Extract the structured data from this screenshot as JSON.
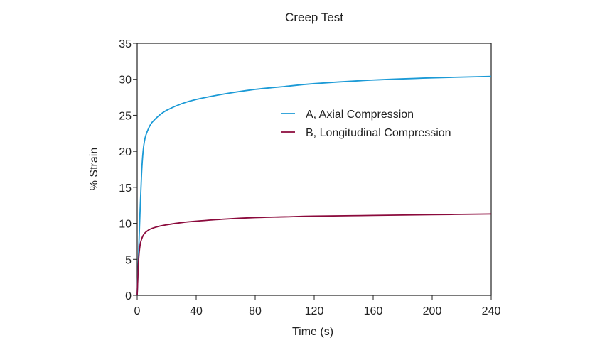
{
  "chart_data": {
    "type": "line",
    "title": "Creep Test",
    "xlabel": "Time (s)",
    "ylabel": "% Strain",
    "xlim": [
      0,
      240
    ],
    "ylim": [
      0,
      35
    ],
    "xticks": [
      0,
      40,
      80,
      120,
      160,
      200,
      240
    ],
    "yticks": [
      0,
      5,
      10,
      15,
      20,
      25,
      30,
      35
    ],
    "grid": false,
    "legend_position": "upper-right-inside",
    "series": [
      {
        "name": "A, Axial Compression",
        "color": "#1b9ad6",
        "x": [
          0,
          1,
          2,
          3,
          4,
          5,
          6,
          8,
          10,
          15,
          20,
          30,
          40,
          60,
          80,
          100,
          120,
          160,
          200,
          240
        ],
        "y": [
          0,
          6,
          12,
          17,
          20,
          21.5,
          22.3,
          23.3,
          24.0,
          25.0,
          25.7,
          26.6,
          27.2,
          28.0,
          28.6,
          29.0,
          29.4,
          29.9,
          30.2,
          30.4
        ]
      },
      {
        "name": "B, Longitudinal Compression",
        "color": "#8b0a3c",
        "x": [
          0,
          1,
          2,
          3,
          4,
          5,
          6,
          8,
          10,
          15,
          20,
          30,
          40,
          60,
          80,
          100,
          120,
          160,
          200,
          240
        ],
        "y": [
          0,
          5.0,
          7.0,
          7.8,
          8.3,
          8.6,
          8.8,
          9.1,
          9.3,
          9.6,
          9.8,
          10.1,
          10.3,
          10.6,
          10.8,
          10.9,
          11.0,
          11.1,
          11.2,
          11.3
        ]
      }
    ]
  }
}
